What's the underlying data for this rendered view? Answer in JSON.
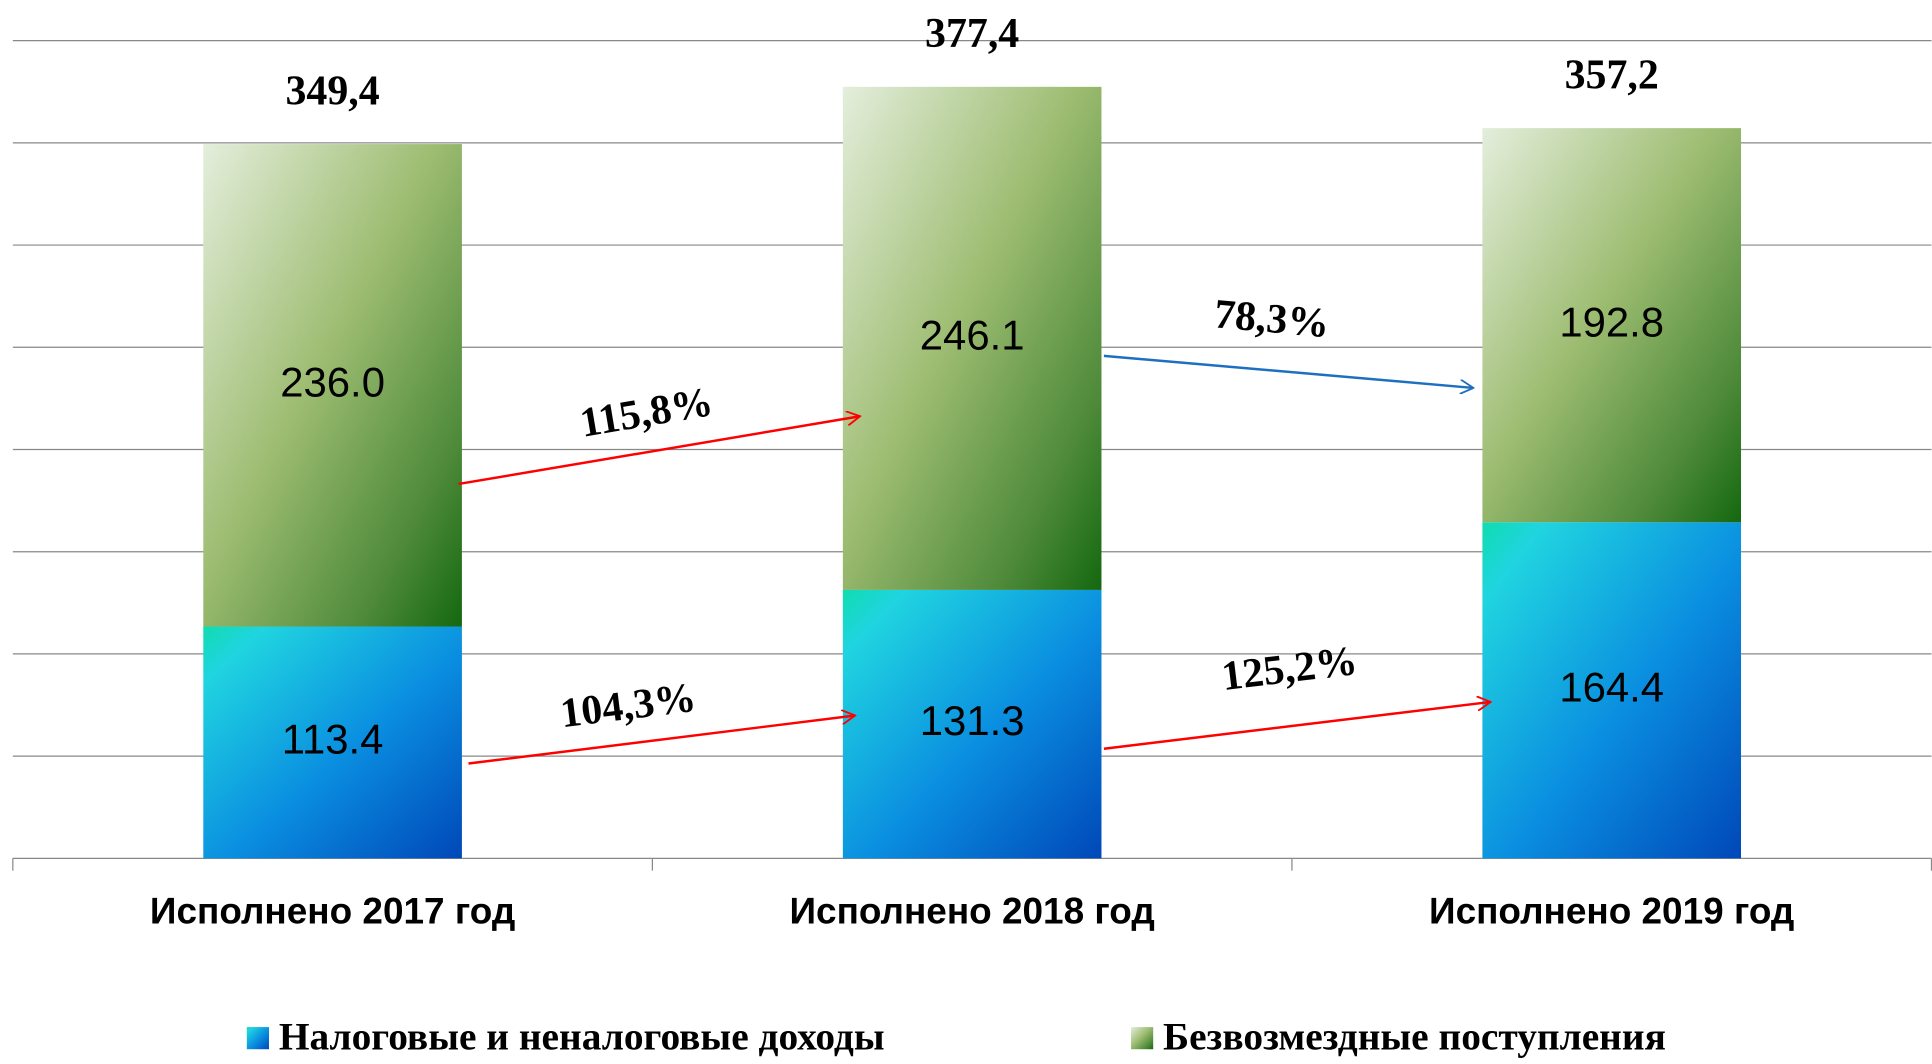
{
  "chart_data": {
    "type": "stacked_bar",
    "categories": [
      "Исполнено 2017 год",
      "Исполнено 2018 год",
      "Исполнено 2019 год"
    ],
    "series": [
      {
        "name": "Налоговые и неналоговые доходы",
        "color": "#0a8ee0",
        "values": [
          113.4,
          131.3,
          164.4
        ],
        "value_labels": [
          "113.4",
          "131.3",
          "164.4"
        ]
      },
      {
        "name": "Безвозмездные поступления",
        "color": "#7fa85a",
        "values": [
          236.0,
          246.1,
          192.8
        ],
        "value_labels": [
          "236.0",
          "246.1",
          "192.8"
        ]
      }
    ],
    "total_labels": [
      "349,4",
      "377,4",
      "357,2"
    ],
    "growth_labels": [
      {
        "label": "115,8%",
        "color": "#ff0000"
      },
      {
        "label": "104,3%",
        "color": "#ff0000"
      },
      {
        "label": "78,3%",
        "color": "#1f6fc0"
      },
      {
        "label": "125,2%",
        "color": "#ff0000"
      }
    ],
    "ylim": [
      0,
      400
    ],
    "yticks": [
      0,
      50,
      100,
      150,
      200,
      250,
      300,
      350,
      400
    ],
    "grid": true,
    "legend": "bottom"
  }
}
